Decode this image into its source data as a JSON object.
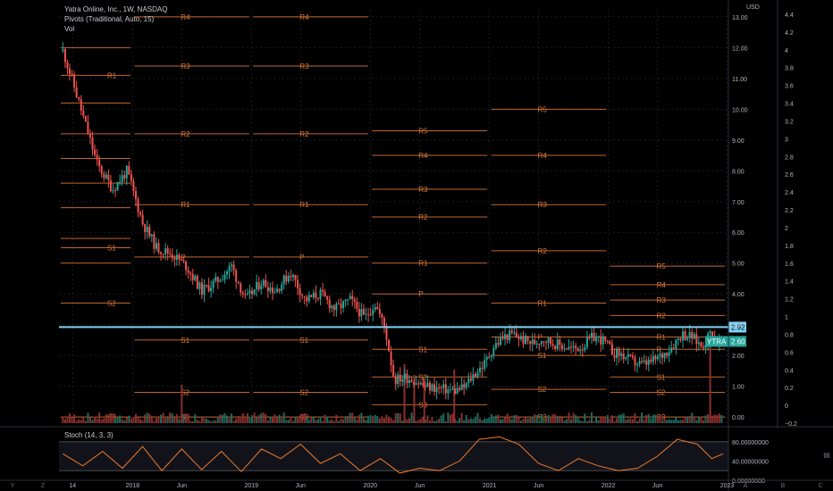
{
  "header": {
    "title": "Yatra Online, Inc., 1W, NASDAQ",
    "pivots": "Pivots (Traditional, Auto, 15)",
    "vol": "Vol"
  },
  "colors": {
    "background": "#000000",
    "up_candle": "#26a69a",
    "down_candle": "#ef5350",
    "pivot_line": "#e07a39",
    "pivot_label": "#e07a39",
    "resistance_line": "#7fd3f7",
    "stoch_line": "#f07a2b",
    "axis_text": "#b2b5be",
    "price_badge": "#26a69a",
    "level_badge": "#7fd3f7"
  },
  "bottom_bar": {
    "left_icons": [
      "Y",
      "Z"
    ],
    "right_icons": [
      "A",
      "B",
      "C"
    ]
  },
  "chart_data": {
    "type": "candlestick",
    "symbol": "YTRA",
    "interval": "1W",
    "exchange": "NASDAQ",
    "price_axis": {
      "unit": "USD",
      "ticks": [
        "13.00",
        "12.00",
        "11.00",
        "10.00",
        "9.00",
        "8.00",
        "7.00",
        "6.00",
        "5.00",
        "4.00",
        "3.00",
        "2.00",
        "1.00",
        "0.00"
      ],
      "range": [
        -0.2,
        13.2
      ]
    },
    "secondary_axis": {
      "ticks": [
        "4.4",
        "4.2",
        "4",
        "3.8",
        "3.6",
        "3.4",
        "3.2",
        "3",
        "2.8",
        "2.6",
        "2.4",
        "2.2",
        "2",
        "1.8",
        "1.6",
        "1.4",
        "1.2",
        "1",
        "0.8",
        "0.6",
        "0.4",
        "0.2",
        "0",
        "−0.2"
      ]
    },
    "x_axis": {
      "ticks": [
        {
          "label": "14",
          "date": "2017-07-01"
        },
        {
          "label": "2018",
          "date": "2018-01-01"
        },
        {
          "label": "Jun",
          "date": "2018-06-01"
        },
        {
          "label": "2019",
          "date": "2019-01-01"
        },
        {
          "label": "Jun",
          "date": "2019-06-01"
        },
        {
          "label": "2020",
          "date": "2020-01-01"
        },
        {
          "label": "Jun",
          "date": "2020-06-01"
        },
        {
          "label": "2021",
          "date": "2021-01-01"
        },
        {
          "label": "Jun",
          "date": "2021-06-01"
        },
        {
          "label": "2022",
          "date": "2022-01-01"
        },
        {
          "label": "Jun",
          "date": "2022-06-01"
        },
        {
          "label": "2023",
          "date": "2023-01-01"
        }
      ],
      "range": [
        "2017-05-20",
        "2023-01-05"
      ]
    },
    "price_path": [
      [
        "2017-06-01",
        11.9
      ],
      [
        "2017-07-01",
        10.9
      ],
      [
        "2017-08-15",
        9.3
      ],
      [
        "2017-09-15",
        8.2
      ],
      [
        "2017-11-01",
        7.4
      ],
      [
        "2017-12-15",
        8.0
      ],
      [
        "2018-02-01",
        6.3
      ],
      [
        "2018-03-15",
        5.5
      ],
      [
        "2018-05-01",
        5.3
      ],
      [
        "2018-06-15",
        4.9
      ],
      [
        "2018-08-01",
        4.1
      ],
      [
        "2018-09-15",
        4.4
      ],
      [
        "2018-11-01",
        4.9
      ],
      [
        "2018-12-15",
        3.8
      ],
      [
        "2019-02-01",
        4.4
      ],
      [
        "2019-03-15",
        4.1
      ],
      [
        "2019-05-01",
        4.7
      ],
      [
        "2019-06-15",
        3.8
      ],
      [
        "2019-08-01",
        4.0
      ],
      [
        "2019-09-15",
        3.5
      ],
      [
        "2019-11-01",
        3.8
      ],
      [
        "2019-12-15",
        3.2
      ],
      [
        "2020-01-15",
        3.7
      ],
      [
        "2020-02-15",
        2.9
      ],
      [
        "2020-03-15",
        1.2
      ],
      [
        "2020-04-15",
        1.3
      ],
      [
        "2020-05-15",
        1.2
      ],
      [
        "2020-06-15",
        1.0
      ],
      [
        "2020-07-15",
        0.95
      ],
      [
        "2020-08-15",
        0.9
      ],
      [
        "2020-09-15",
        0.85
      ],
      [
        "2020-10-15",
        0.95
      ],
      [
        "2020-11-15",
        1.4
      ],
      [
        "2020-12-15",
        1.7
      ],
      [
        "2021-01-15",
        2.3
      ],
      [
        "2021-02-15",
        2.6
      ],
      [
        "2021-03-15",
        2.7
      ],
      [
        "2021-04-15",
        2.5
      ],
      [
        "2021-05-15",
        2.4
      ],
      [
        "2021-06-15",
        2.55
      ],
      [
        "2021-07-15",
        2.4
      ],
      [
        "2021-08-15",
        2.3
      ],
      [
        "2021-09-15",
        2.2
      ],
      [
        "2021-10-15",
        2.3
      ],
      [
        "2021-11-15",
        2.6
      ],
      [
        "2021-12-15",
        2.5
      ],
      [
        "2022-01-15",
        2.1
      ],
      [
        "2022-02-15",
        2.0
      ],
      [
        "2022-03-15",
        1.8
      ],
      [
        "2022-04-15",
        1.7
      ],
      [
        "2022-05-15",
        1.8
      ],
      [
        "2022-06-15",
        2.0
      ],
      [
        "2022-07-15",
        2.3
      ],
      [
        "2022-08-15",
        2.7
      ],
      [
        "2022-09-15",
        2.6
      ],
      [
        "2022-10-15",
        2.3
      ],
      [
        "2022-11-15",
        2.8
      ],
      [
        "2022-12-01",
        2.4
      ],
      [
        "2022-12-20",
        2.6
      ]
    ],
    "volume_spikes": [
      {
        "date": "2018-06-01",
        "value": 0.36
      },
      {
        "date": "2020-04-15",
        "value": 0.55
      },
      {
        "date": "2020-05-15",
        "value": 0.45
      },
      {
        "date": "2020-06-15",
        "value": 0.4
      },
      {
        "date": "2020-09-15",
        "value": 0.5
      },
      {
        "date": "2022-11-10",
        "value": 0.8
      }
    ],
    "pivot_periods": [
      {
        "start": "2017-05-20",
        "end": "2017-12-31",
        "levels": [
          {
            "label": "R1",
            "price": 11.1
          },
          {
            "label": "",
            "price": 12.0
          },
          {
            "label": "",
            "price": 10.2
          },
          {
            "label": "",
            "price": 9.2
          },
          {
            "label": "",
            "price": 8.4
          },
          {
            "label": "",
            "price": 7.6
          },
          {
            "label": "",
            "price": 6.8
          },
          {
            "label": "",
            "price": 5.8
          },
          {
            "label": "S1",
            "price": 5.5
          },
          {
            "label": "",
            "price": 5.0
          },
          {
            "label": "S2",
            "price": 3.7
          },
          {
            "label": "S3",
            "price": 0.0
          }
        ]
      },
      {
        "start": "2018-01-01",
        "end": "2018-12-31",
        "levels": [
          {
            "label": "R4",
            "price": 13.0
          },
          {
            "label": "R3",
            "price": 11.4
          },
          {
            "label": "R2",
            "price": 9.2
          },
          {
            "label": "R1",
            "price": 6.9
          },
          {
            "label": "P",
            "price": 5.2
          },
          {
            "label": "S1",
            "price": 2.5
          },
          {
            "label": "S2",
            "price": 0.8
          },
          {
            "label": "S3",
            "price": 0.0
          }
        ]
      },
      {
        "start": "2019-01-01",
        "end": "2019-12-31",
        "levels": [
          {
            "label": "R4",
            "price": 13.0
          },
          {
            "label": "R3",
            "price": 11.4
          },
          {
            "label": "R2",
            "price": 9.2
          },
          {
            "label": "R1",
            "price": 6.9
          },
          {
            "label": "P",
            "price": 5.2
          },
          {
            "label": "S1",
            "price": 2.5
          },
          {
            "label": "S2",
            "price": 0.8
          },
          {
            "label": "S3",
            "price": 0.0
          }
        ]
      },
      {
        "start": "2020-01-01",
        "end": "2020-12-31",
        "levels": [
          {
            "label": "R5",
            "price": 9.3
          },
          {
            "label": "R4",
            "price": 8.5
          },
          {
            "label": "R3",
            "price": 7.4
          },
          {
            "label": "R2",
            "price": 6.5
          },
          {
            "label": "R1",
            "price": 5.0
          },
          {
            "label": "P",
            "price": 4.0
          },
          {
            "label": "S1",
            "price": 2.2
          },
          {
            "label": "S2",
            "price": 1.3
          },
          {
            "label": "S3",
            "price": 0.4
          }
        ]
      },
      {
        "start": "2021-01-01",
        "end": "2021-12-31",
        "levels": [
          {
            "label": "R5",
            "price": 10.0
          },
          {
            "label": "R4",
            "price": 8.5
          },
          {
            "label": "R3",
            "price": 6.9
          },
          {
            "label": "R2",
            "price": 5.4
          },
          {
            "label": "R1",
            "price": 3.7
          },
          {
            "label": "P",
            "price": 2.6
          },
          {
            "label": "S1",
            "price": 2.0
          },
          {
            "label": "S2",
            "price": 0.9
          },
          {
            "label": "S3",
            "price": 0.0
          }
        ]
      },
      {
        "start": "2022-01-01",
        "end": "2022-12-31",
        "levels": [
          {
            "label": "R5",
            "price": 4.9
          },
          {
            "label": "R4",
            "price": 4.3
          },
          {
            "label": "R3",
            "price": 3.8
          },
          {
            "label": "R2",
            "price": 3.3
          },
          {
            "label": "R1",
            "price": 2.6
          },
          {
            "label": "P",
            "price": 2.2
          },
          {
            "label": "S1",
            "price": 1.3
          },
          {
            "label": "S2",
            "price": 0.8
          },
          {
            "label": "S3",
            "price": 0.0
          }
        ]
      }
    ],
    "horizontal_line": {
      "price": 2.92,
      "label": "2.92"
    },
    "last_price": {
      "symbol": "YTRA",
      "price": 2.6,
      "label": "2.60"
    },
    "stochastic": {
      "title": "Stoch (14, 3, 3)",
      "ticks": [
        "80.00000000",
        "40.00000000",
        "0.00000000"
      ],
      "range": [
        0,
        100
      ],
      "band_upper": 80,
      "band_lower": 20,
      "values": [
        [
          "2017-06-01",
          55
        ],
        [
          "2017-08-01",
          30
        ],
        [
          "2017-10-01",
          60
        ],
        [
          "2017-12-01",
          25
        ],
        [
          "2018-02-01",
          70
        ],
        [
          "2018-04-01",
          20
        ],
        [
          "2018-06-01",
          65
        ],
        [
          "2018-08-01",
          22
        ],
        [
          "2018-10-01",
          60
        ],
        [
          "2018-12-01",
          18
        ],
        [
          "2019-02-01",
          65
        ],
        [
          "2019-04-01",
          45
        ],
        [
          "2019-06-01",
          75
        ],
        [
          "2019-08-01",
          35
        ],
        [
          "2019-10-01",
          55
        ],
        [
          "2019-12-01",
          20
        ],
        [
          "2020-02-01",
          45
        ],
        [
          "2020-04-01",
          15
        ],
        [
          "2020-06-01",
          25
        ],
        [
          "2020-08-01",
          20
        ],
        [
          "2020-10-01",
          40
        ],
        [
          "2020-12-01",
          85
        ],
        [
          "2021-02-01",
          90
        ],
        [
          "2021-04-01",
          75
        ],
        [
          "2021-06-01",
          35
        ],
        [
          "2021-08-01",
          20
        ],
        [
          "2021-10-01",
          45
        ],
        [
          "2021-12-01",
          30
        ],
        [
          "2022-02-01",
          20
        ],
        [
          "2022-04-01",
          25
        ],
        [
          "2022-06-01",
          50
        ],
        [
          "2022-08-01",
          85
        ],
        [
          "2022-10-01",
          75
        ],
        [
          "2022-11-15",
          45
        ],
        [
          "2022-12-20",
          55
        ]
      ]
    },
    "grid": true
  }
}
